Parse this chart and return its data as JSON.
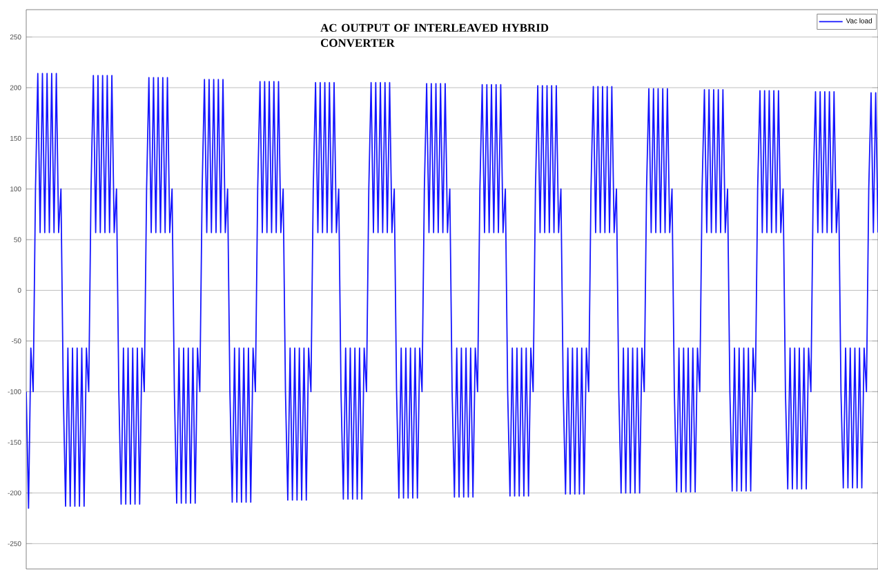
{
  "chart_data": {
    "type": "line",
    "title": "AC OUTPUT OF INTERLEAVED HYBRID CONVERTER",
    "categories": [
      null,
      null,
      null,
      null,
      null,
      null,
      null,
      null,
      null,
      null,
      null,
      null,
      null,
      null,
      null,
      null,
      null,
      null,
      null,
      null,
      null,
      null,
      null,
      null,
      null,
      null,
      null,
      null,
      null,
      null,
      null,
      null,
      null,
      null,
      null,
      null,
      null,
      null,
      null,
      null,
      null,
      null,
      null,
      null,
      null,
      null,
      null,
      null,
      null,
      null,
      null,
      null,
      null,
      null,
      null,
      null,
      null,
      null,
      null,
      null,
      null,
      null,
      null,
      null,
      null,
      null,
      null,
      null,
      null,
      null,
      null,
      null,
      null,
      null,
      null,
      null,
      null,
      null,
      null,
      null,
      null,
      null,
      null,
      null,
      null,
      null,
      null,
      null,
      null,
      null,
      null,
      null,
      null,
      null,
      null,
      null,
      null,
      null,
      null,
      null,
      null,
      null,
      null,
      null,
      null,
      null,
      null,
      null,
      null,
      null,
      null,
      null,
      null,
      null,
      null,
      null,
      null,
      null,
      null,
      null,
      null,
      null,
      null,
      null,
      null,
      null,
      null,
      null,
      null,
      null,
      null,
      null,
      null,
      null,
      null,
      null,
      null,
      null,
      null,
      null,
      null,
      null,
      null,
      null,
      null,
      null,
      null,
      null,
      null,
      null,
      null,
      null,
      null,
      null,
      null,
      null,
      null,
      null,
      null,
      null,
      null,
      null,
      null,
      null,
      null,
      null,
      null,
      null,
      null,
      null,
      null,
      null,
      null,
      null,
      null,
      null,
      null,
      null,
      null,
      null,
      null,
      null,
      null,
      null,
      null,
      null,
      null,
      null,
      null,
      null,
      null,
      null,
      null,
      null,
      null,
      null,
      null,
      null,
      null,
      null,
      null,
      null,
      null,
      null,
      null,
      null,
      null,
      null,
      null,
      null,
      null,
      null,
      null,
      null,
      null,
      null,
      null,
      null,
      null,
      null,
      null,
      null,
      null,
      null,
      null,
      null,
      null,
      null,
      null,
      null,
      null,
      null,
      null,
      null,
      null,
      null,
      null,
      null,
      null,
      null,
      null,
      null,
      null,
      null,
      null,
      null,
      null,
      null,
      null,
      null,
      null,
      null,
      null,
      null,
      null,
      null,
      null,
      null,
      null,
      null,
      null,
      null,
      null,
      null,
      null,
      null,
      null,
      null,
      null,
      null,
      null,
      null,
      null,
      null,
      null,
      null,
      null,
      null,
      null,
      null,
      null,
      null,
      null,
      null,
      null,
      null,
      null,
      null,
      null,
      null,
      null,
      null,
      null,
      null,
      null,
      null,
      null,
      null,
      null,
      null,
      null,
      null,
      null,
      null,
      null,
      null,
      null,
      null,
      null,
      null,
      null,
      null,
      null,
      null,
      null,
      null,
      null,
      null,
      null,
      null,
      null,
      null,
      null,
      null,
      null,
      null,
      null,
      null,
      null,
      null,
      null,
      null,
      null,
      null,
      null,
      null,
      null,
      null,
      null,
      null,
      null,
      null,
      null,
      null,
      null,
      null,
      null,
      null,
      null,
      null,
      null,
      null,
      null,
      null,
      null,
      null,
      null,
      null,
      null,
      null,
      null,
      null,
      null,
      null,
      null,
      null,
      null,
      null,
      null
    ],
    "series": [
      {
        "name": "Vac load",
        "color": "#1414ff",
        "values": [
          -100,
          -215,
          -57,
          -100,
          100,
          214,
          57,
          214,
          57,
          214,
          57,
          214,
          57,
          214,
          57,
          100,
          -100,
          -213,
          -57,
          -213,
          -57,
          -213,
          -57,
          -213,
          -57,
          -213,
          -57,
          -100,
          100,
          212,
          57,
          212,
          57,
          212,
          57,
          212,
          57,
          212,
          57,
          100,
          -100,
          -211,
          -57,
          -211,
          -57,
          -211,
          -57,
          -211,
          -57,
          -211,
          -57,
          -100,
          100,
          210,
          57,
          210,
          57,
          210,
          57,
          210,
          57,
          210,
          57,
          100,
          -100,
          -210,
          -57,
          -210,
          -57,
          -210,
          -57,
          -210,
          -57,
          -210,
          -57,
          -100,
          100,
          208,
          57,
          208,
          57,
          208,
          57,
          208,
          57,
          208,
          57,
          100,
          -100,
          -209,
          -57,
          -209,
          -57,
          -209,
          -57,
          -209,
          -57,
          -209,
          -57,
          -100,
          100,
          206,
          57,
          206,
          57,
          206,
          57,
          206,
          57,
          206,
          57,
          100,
          -100,
          -207,
          -57,
          -207,
          -57,
          -207,
          -57,
          -207,
          -57,
          -207,
          -57,
          -100,
          100,
          205,
          57,
          205,
          57,
          205,
          57,
          205,
          57,
          205,
          57,
          100,
          -100,
          -206,
          -57,
          -206,
          -57,
          -206,
          -57,
          -206,
          -57,
          -206,
          -57,
          -100,
          100,
          205,
          57,
          205,
          57,
          205,
          57,
          205,
          57,
          205,
          57,
          100,
          -100,
          -205,
          -57,
          -205,
          -57,
          -205,
          -57,
          -205,
          -57,
          -205,
          -57,
          -100,
          100,
          204,
          57,
          204,
          57,
          204,
          57,
          204,
          57,
          204,
          57,
          100,
          -100,
          -204,
          -57,
          -204,
          -57,
          -204,
          -57,
          -204,
          -57,
          -204,
          -57,
          -100,
          100,
          203,
          57,
          203,
          57,
          203,
          57,
          203,
          57,
          203,
          57,
          100,
          -100,
          -203,
          -57,
          -203,
          -57,
          -203,
          -57,
          -203,
          -57,
          -203,
          -57,
          -100,
          100,
          202,
          57,
          202,
          57,
          202,
          57,
          202,
          57,
          202,
          57,
          100,
          -100,
          -201,
          -57,
          -201,
          -57,
          -201,
          -57,
          -201,
          -57,
          -201,
          -57,
          -100,
          100,
          201,
          57,
          201,
          57,
          201,
          57,
          201,
          57,
          201,
          57,
          100,
          -100,
          -200,
          -57,
          -200,
          -57,
          -200,
          -57,
          -200,
          -57,
          -200,
          -57,
          -100,
          100,
          199,
          57,
          199,
          57,
          199,
          57,
          199,
          57,
          199,
          57,
          100,
          -100,
          -199,
          -57,
          -199,
          -57,
          -199,
          -57,
          -199,
          -57,
          -199,
          -57,
          -100,
          100,
          198,
          57,
          198,
          57,
          198,
          57,
          198,
          57,
          198,
          57,
          100,
          -100,
          -198,
          -57,
          -198,
          -57,
          -198,
          -57,
          -198,
          -57,
          -198,
          -57,
          -100,
          100,
          197,
          57,
          197,
          57,
          197,
          57,
          197,
          57,
          197,
          57,
          100,
          -100,
          -196,
          -57,
          -196,
          -57,
          -196,
          -57,
          -196,
          -57,
          -196,
          -57,
          -100,
          100,
          196,
          57,
          196,
          57,
          196,
          57,
          196,
          57,
          196,
          57,
          100,
          -100,
          -195,
          -57,
          -195,
          -57,
          -195,
          -57,
          -195,
          -57,
          -195,
          -57,
          -100,
          100,
          195,
          57,
          195,
          57
        ]
      }
    ],
    "ylim": [
      -275,
      277
    ],
    "yticks": [
      -250,
      -200,
      -150,
      -100,
      -50,
      0,
      50,
      100,
      150,
      200,
      250
    ],
    "grid": "y",
    "legend": "top right",
    "tick_labels": "y"
  }
}
